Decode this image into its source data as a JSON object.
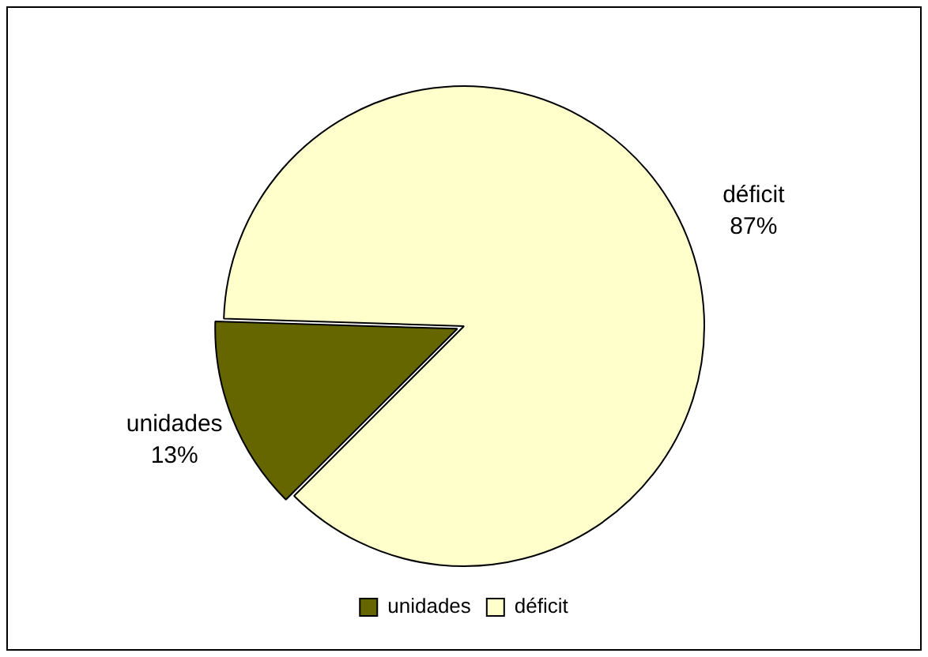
{
  "chart_data": {
    "type": "pie",
    "categories": [
      "unidades",
      "déficit"
    ],
    "values": [
      13,
      87
    ],
    "colors": [
      "#666600",
      "#ffffcc"
    ],
    "value_labels": [
      "13%",
      "87%"
    ],
    "legend": "bottom"
  }
}
